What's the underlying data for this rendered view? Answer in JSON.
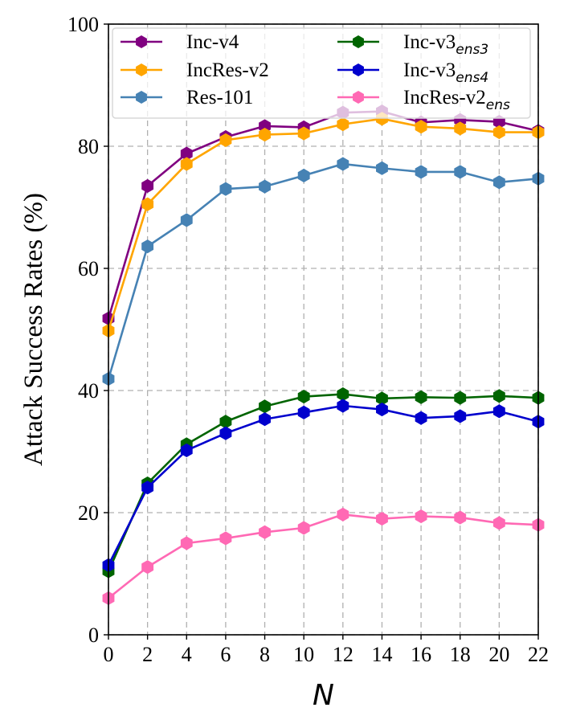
{
  "chart_data": {
    "type": "line",
    "title": "",
    "xlabel": "N",
    "ylabel": "Attack Success Rates (%)",
    "x": [
      0,
      2,
      4,
      6,
      8,
      10,
      12,
      14,
      16,
      18,
      20,
      22
    ],
    "xticks": [
      "0",
      "2",
      "4",
      "6",
      "8",
      "10",
      "12",
      "14",
      "16",
      "18",
      "20",
      "22"
    ],
    "yticks": [
      "0",
      "20",
      "40",
      "60",
      "80",
      "100"
    ],
    "xlim": [
      0,
      22
    ],
    "ylim": [
      0,
      100
    ],
    "grid": true,
    "legend_position": "top",
    "series": [
      {
        "name": "Inc-v4",
        "label_base": "Inc-v4",
        "label_sub": "",
        "color": "#800080",
        "values": [
          51.8,
          73.5,
          78.8,
          81.5,
          83.3,
          83.1,
          85.5,
          85.7,
          83.9,
          84.3,
          84.0,
          82.5
        ]
      },
      {
        "name": "IncRes-v2",
        "label_base": "IncRes-v2",
        "label_sub": "",
        "color": "#FFA500",
        "values": [
          49.8,
          70.5,
          77.1,
          81.0,
          81.9,
          82.1,
          83.6,
          84.5,
          83.2,
          82.9,
          82.3,
          82.3
        ]
      },
      {
        "name": "Res-101",
        "label_base": "Res-101",
        "label_sub": "",
        "color": "#4682B4",
        "values": [
          41.9,
          63.6,
          67.9,
          73.0,
          73.4,
          75.2,
          77.1,
          76.4,
          75.8,
          75.8,
          74.1,
          74.7
        ]
      },
      {
        "name": "Inc-v3ens3",
        "label_base": "Inc-v3",
        "label_sub": "ens3",
        "color": "#006400",
        "values": [
          10.4,
          24.8,
          31.2,
          34.9,
          37.4,
          39.0,
          39.4,
          38.7,
          38.9,
          38.8,
          39.1,
          38.8
        ]
      },
      {
        "name": "Inc-v3ens4",
        "label_base": "Inc-v3",
        "label_sub": "ens4",
        "color": "#0000CD",
        "values": [
          11.4,
          24.1,
          30.2,
          33.0,
          35.3,
          36.4,
          37.5,
          36.9,
          35.5,
          35.8,
          36.6,
          34.9
        ]
      },
      {
        "name": "IncRes-v2ens",
        "label_base": "IncRes-v2",
        "label_sub": "ens",
        "color": "#FF69B4",
        "values": [
          6.0,
          11.1,
          15.0,
          15.8,
          16.8,
          17.5,
          19.7,
          19.0,
          19.4,
          19.2,
          18.3,
          18.0
        ]
      }
    ]
  }
}
